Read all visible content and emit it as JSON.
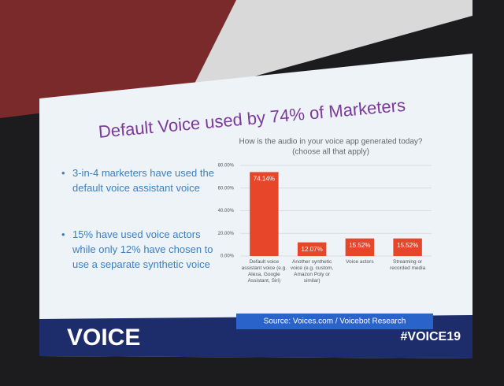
{
  "slide": {
    "title": "Default Voice used by 74% of Marketers",
    "bullets": [
      "3-in-4 marketers have used the default voice assistant voice",
      "15% have used voice actors while only 12% have chosen to use a separate synthetic voice"
    ],
    "source": "Source: Voices.com / Voicebot Research"
  },
  "footer": {
    "left": "VOICE",
    "right": "#VOICE19"
  },
  "chart_data": {
    "type": "bar",
    "title": "How is the audio in your voice app generated today?",
    "subtitle": "(choose all that apply)",
    "categories": [
      "Default voice assistant voice (e.g. Alexa, Google Assistant, Siri)",
      "Another synthetic voice (e.g. custom, Amazon Poly or similar)",
      "Voice actors",
      "Streaming or recorded media"
    ],
    "values": [
      74.14,
      12.07,
      15.52,
      15.52
    ],
    "value_labels": [
      "74.14%",
      "12.07%",
      "15.52%",
      "15.52%"
    ],
    "color": "#e8462a",
    "ylim": [
      0,
      80
    ],
    "yticks": [
      {
        "value": 0,
        "label": "0.00%"
      },
      {
        "value": 20,
        "label": "20.00%"
      },
      {
        "value": 40,
        "label": "40.00%"
      },
      {
        "value": 60,
        "label": "60.00%"
      },
      {
        "value": 80,
        "label": "80.00%"
      }
    ],
    "grid": true
  }
}
